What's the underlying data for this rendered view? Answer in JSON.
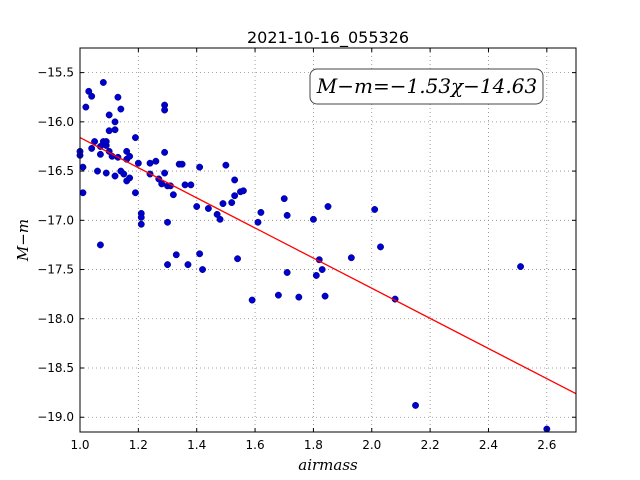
{
  "chart_data": {
    "type": "scatter",
    "title": "2021-10-16_055326",
    "xlabel": "airmass",
    "ylabel": "M−m",
    "xlim": [
      1.0,
      2.7
    ],
    "ylim": [
      -19.15,
      -15.25
    ],
    "y_inverted": true,
    "grid": true,
    "x_ticks": [
      "1.0",
      "1.2",
      "1.4",
      "1.6",
      "1.8",
      "2.0",
      "2.2",
      "2.4",
      "2.6"
    ],
    "y_ticks": [
      "−15.5",
      "−16.0",
      "−16.5",
      "−17.0",
      "−17.5",
      "−18.0",
      "−18.5",
      "−19.0"
    ],
    "annotation": "M−m=−1.53χ−14.63",
    "annotation_position": "top-right",
    "fit": {
      "slope": -1.53,
      "intercept": -14.63,
      "color": "#ff0000"
    },
    "point_color": "#0000cc",
    "points": [
      [
        1.0,
        -16.3
      ],
      [
        1.0,
        -16.34
      ],
      [
        1.01,
        -16.46
      ],
      [
        1.01,
        -16.72
      ],
      [
        1.02,
        -15.85
      ],
      [
        1.03,
        -15.69
      ],
      [
        1.04,
        -15.74
      ],
      [
        1.04,
        -16.27
      ],
      [
        1.05,
        -16.2
      ],
      [
        1.06,
        -16.5
      ],
      [
        1.07,
        -17.25
      ],
      [
        1.07,
        -16.33
      ],
      [
        1.07,
        -16.25
      ],
      [
        1.08,
        -15.6
      ],
      [
        1.08,
        -16.2
      ],
      [
        1.09,
        -16.52
      ],
      [
        1.09,
        -16.24
      ],
      [
        1.09,
        -16.2
      ],
      [
        1.1,
        -15.93
      ],
      [
        1.1,
        -16.09
      ],
      [
        1.1,
        -16.3
      ],
      [
        1.11,
        -16.35
      ],
      [
        1.12,
        -16.0
      ],
      [
        1.12,
        -16.08
      ],
      [
        1.12,
        -16.55
      ],
      [
        1.13,
        -15.75
      ],
      [
        1.13,
        -16.36
      ],
      [
        1.14,
        -15.87
      ],
      [
        1.14,
        -16.5
      ],
      [
        1.15,
        -16.53
      ],
      [
        1.16,
        -16.3
      ],
      [
        1.16,
        -16.38
      ],
      [
        1.16,
        -16.6
      ],
      [
        1.17,
        -16.35
      ],
      [
        1.17,
        -16.57
      ],
      [
        1.19,
        -16.16
      ],
      [
        1.19,
        -16.72
      ],
      [
        1.2,
        -16.42
      ],
      [
        1.21,
        -17.04
      ],
      [
        1.21,
        -16.93
      ],
      [
        1.21,
        -16.97
      ],
      [
        1.24,
        -16.42
      ],
      [
        1.24,
        -16.53
      ],
      [
        1.26,
        -16.4
      ],
      [
        1.27,
        -16.58
      ],
      [
        1.28,
        -16.63
      ],
      [
        1.29,
        -15.83
      ],
      [
        1.29,
        -15.88
      ],
      [
        1.29,
        -16.31
      ],
      [
        1.29,
        -16.52
      ],
      [
        1.3,
        -16.65
      ],
      [
        1.3,
        -17.45
      ],
      [
        1.3,
        -17.02
      ],
      [
        1.31,
        -16.65
      ],
      [
        1.32,
        -16.74
      ],
      [
        1.33,
        -17.35
      ],
      [
        1.34,
        -16.43
      ],
      [
        1.35,
        -16.43
      ],
      [
        1.36,
        -16.64
      ],
      [
        1.37,
        -17.45
      ],
      [
        1.38,
        -16.64
      ],
      [
        1.4,
        -16.86
      ],
      [
        1.41,
        -16.46
      ],
      [
        1.41,
        -17.34
      ],
      [
        1.42,
        -17.5
      ],
      [
        1.44,
        -16.88
      ],
      [
        1.47,
        -16.94
      ],
      [
        1.48,
        -16.99
      ],
      [
        1.49,
        -16.83
      ],
      [
        1.5,
        -16.44
      ],
      [
        1.52,
        -16.82
      ],
      [
        1.53,
        -16.59
      ],
      [
        1.53,
        -16.75
      ],
      [
        1.54,
        -17.39
      ],
      [
        1.55,
        -16.71
      ],
      [
        1.56,
        -16.7
      ],
      [
        1.59,
        -17.81
      ],
      [
        1.61,
        -17.02
      ],
      [
        1.62,
        -16.92
      ],
      [
        1.68,
        -17.76
      ],
      [
        1.7,
        -16.78
      ],
      [
        1.71,
        -16.95
      ],
      [
        1.71,
        -17.53
      ],
      [
        1.75,
        -17.78
      ],
      [
        1.8,
        -16.99
      ],
      [
        1.81,
        -17.56
      ],
      [
        1.82,
        -17.4
      ],
      [
        1.83,
        -17.5
      ],
      [
        1.84,
        -17.77
      ],
      [
        1.85,
        -16.86
      ],
      [
        1.93,
        -17.38
      ],
      [
        2.01,
        -16.89
      ],
      [
        2.03,
        -17.27
      ],
      [
        2.08,
        -17.8
      ],
      [
        2.15,
        -18.88
      ],
      [
        2.51,
        -17.47
      ],
      [
        2.6,
        -19.12
      ]
    ]
  }
}
